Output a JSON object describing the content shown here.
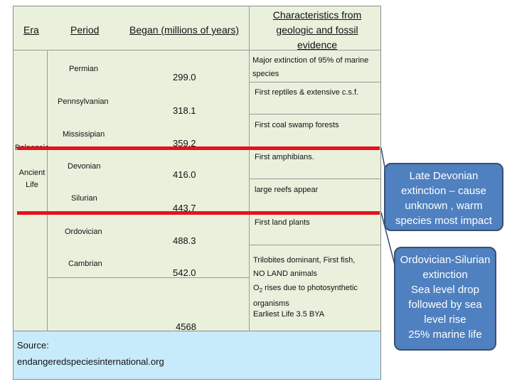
{
  "headers": {
    "era": "Era",
    "period": "Period",
    "began": "Began (millions of years)",
    "characteristics": "Characteristics from geologic and fossil evidence"
  },
  "era": {
    "name": "Paleozoic",
    "subtitle": "Ancient Life"
  },
  "rows": [
    {
      "period": "Permian",
      "began": "299.0",
      "characteristic": "Major extinction of 95% of marine species"
    },
    {
      "period": "Pennsylvanian",
      "began": "318.1",
      "characteristic": "First reptiles & extensive c.s.f."
    },
    {
      "period": "Mississipian",
      "began": "359.2",
      "characteristic": "First coal swamp forests"
    },
    {
      "period": "Devonian",
      "began": "416.0",
      "characteristic": "First amphibians."
    },
    {
      "period": "Silurian",
      "began": "443.7",
      "characteristic": "large reefs appear"
    },
    {
      "period": "Ordovician",
      "began": "488.3",
      "characteristic": "First land plants"
    },
    {
      "period": "Cambrian",
      "began": "542.0",
      "characteristic_lines": [
        "Trilobites dominant, First fish,",
        "NO LAND animals"
      ]
    }
  ],
  "precambrian": {
    "began": "4568",
    "o2_prefix": "O",
    "o2_subscript": "2",
    "o2_suffix": " rises due to photosynthetic organisms",
    "earliest_life": "Earliest Life 3.5 BYA"
  },
  "source": {
    "label": "Source:",
    "url": "endangeredspeciesinternational.org"
  },
  "callouts": {
    "devonian": "Late Devonian extinction – cause unknown , warm species most impact",
    "ordovician_title": "Ordovician-Silurian extinction",
    "ordovician_line1": "Sea level drop followed by sea level rise",
    "ordovician_line2": "25% marine life"
  },
  "colors": {
    "table_bg": "#e9f1dd",
    "source_bg": "#c8ebfb",
    "extinction_line": "#e8101a",
    "callout_bg": "#4f80c0"
  }
}
